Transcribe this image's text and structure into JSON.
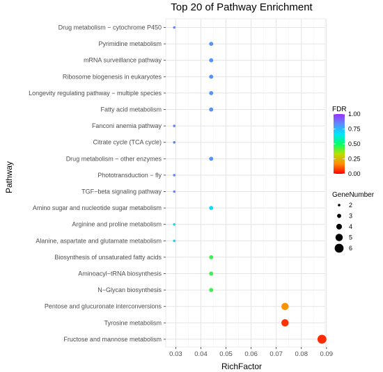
{
  "chart_data": {
    "type": "scatter",
    "title": "Top 20 of Pathway Enrichment",
    "xlabel": "RichFactor",
    "ylabel": "Pathway",
    "xlim": [
      0.026,
      0.0895
    ],
    "xticks": [
      "0.03",
      "0.04",
      "0.05",
      "0.06",
      "0.07",
      "0.08",
      "0.09"
    ],
    "xtick_values": [
      0.03,
      0.04,
      0.05,
      0.06,
      0.07,
      0.08,
      0.09
    ],
    "grid": true,
    "categories": [
      "Drug metabolism − cytochrome P450",
      "Pyrimidine metabolism",
      "mRNA surveillance pathway",
      "Ribosome biogenesis in eukaryotes",
      "Longevity regulating pathway − multiple species",
      "Fatty acid metabolism",
      "Fanconi anemia pathway",
      "Citrate cycle (TCA cycle)",
      "Drug metabolism − other enzymes",
      "Phototransduction − fly",
      "TGF−beta signaling pathway",
      "Amino sugar and nucleotide sugar metabolism",
      "Arginine and proline metabolism",
      "Alanine, aspartate and glutamate metabolism",
      "Biosynthesis of unsaturated fatty acids",
      "Aminoacyl−tRNA biosynthesis",
      "N−Glycan biosynthesis",
      "Pentose and glucuronate interconversions",
      "Tyrosine metabolism",
      "Fructose and mannose metabolism"
    ],
    "rich_factor": [
      0.0294,
      0.0441,
      0.0441,
      0.0441,
      0.0441,
      0.0441,
      0.0294,
      0.0294,
      0.0441,
      0.0294,
      0.0294,
      0.0441,
      0.0294,
      0.0294,
      0.0441,
      0.0441,
      0.0441,
      0.0735,
      0.0735,
      0.0882
    ],
    "gene_number": [
      2,
      3,
      3,
      3,
      3,
      3,
      2,
      2,
      3,
      2,
      2,
      3,
      2,
      2,
      3,
      3,
      3,
      5,
      5,
      6
    ],
    "fdr": [
      0.85,
      0.82,
      0.82,
      0.82,
      0.82,
      0.82,
      0.85,
      0.85,
      0.82,
      0.85,
      0.85,
      0.68,
      0.68,
      0.68,
      0.45,
      0.45,
      0.45,
      0.18,
      0.06,
      0.05
    ],
    "color_legend": {
      "title": "FDR",
      "labels": [
        "1.00",
        "0.75",
        "0.50",
        "0.25",
        "0.00"
      ],
      "values": [
        1.0,
        0.75,
        0.5,
        0.25,
        0.0
      ],
      "colors": [
        "#9b30ff",
        "#5b8cff",
        "#00e5ff",
        "#00ff6a",
        "#b8e000",
        "#ff8c00",
        "#ff0000"
      ]
    },
    "size_legend": {
      "title": "GeneNumber",
      "labels": [
        "2",
        "3",
        "4",
        "5",
        "6"
      ],
      "values": [
        2,
        3,
        4,
        5,
        6
      ]
    },
    "legend_position": "right"
  }
}
